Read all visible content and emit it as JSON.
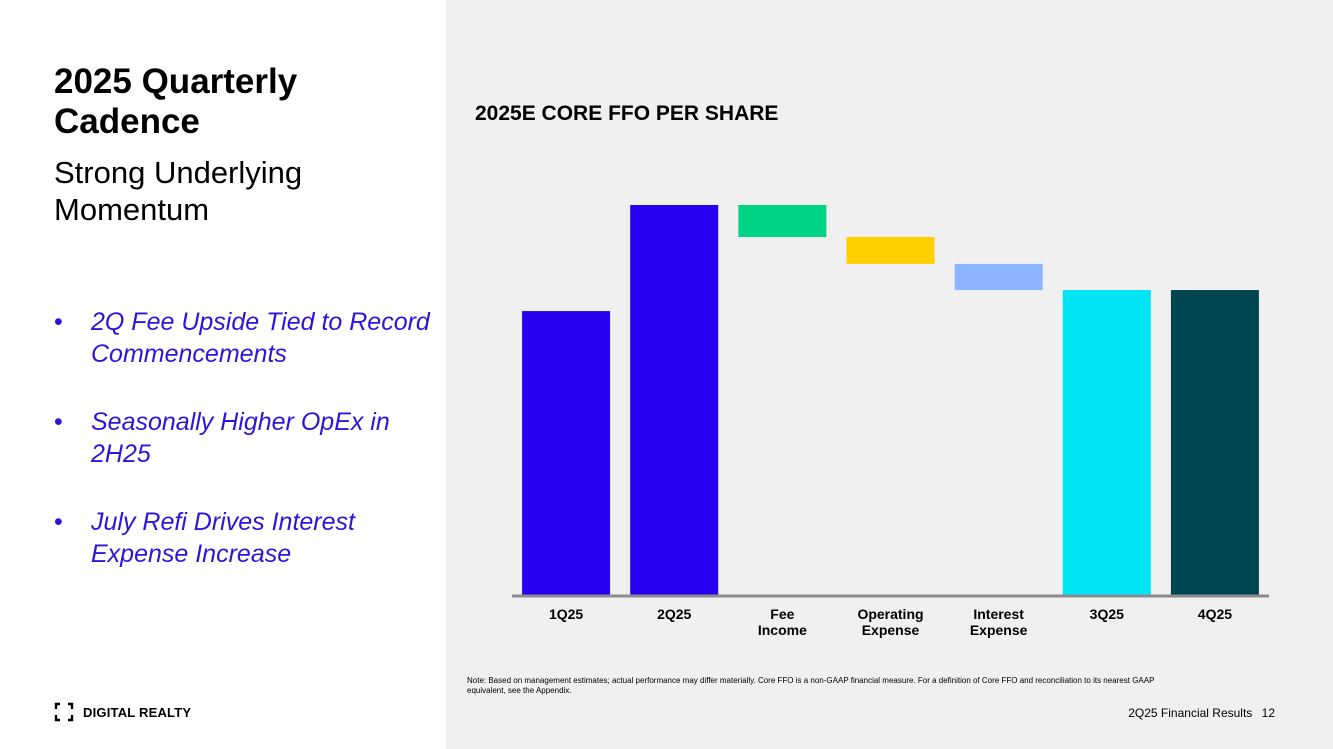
{
  "slide": {
    "title": "2025 Quarterly Cadence",
    "subtitle": "Strong Underlying Momentum",
    "bullets": [
      "2Q Fee Upside Tied to Record Commencements",
      "Seasonally Higher OpEx in 2H25",
      "July Refi Drives Interest Expense Increase"
    ],
    "bullet_symbol": "•",
    "logo_text": "DIGITAL REALTY",
    "note": "Note: Based on management estimates; actual performance may differ materially. Core FFO is a non-GAAP financial measure.  For a definition of Core FFO and reconciliation to its nearest GAAP equivalent, see the Appendix.",
    "footer_label": "2Q25 Financial Results",
    "page_number": "12"
  },
  "colors": {
    "accent_text": "#2f14d9",
    "panel_bg": "#f0f0f0"
  },
  "chart_data": {
    "type": "bar",
    "subtype": "waterfall",
    "title": "2025E CORE FFO PER SHARE",
    "xlabel": "",
    "ylabel": "",
    "ylim": [
      0,
      10
    ],
    "grid": false,
    "legend": "none",
    "categories": [
      "1Q25",
      "2Q25",
      "Fee Income",
      "Operating Expense",
      "Interest Expense",
      "3Q25",
      "4Q25"
    ],
    "category_lines": [
      [
        "1Q25"
      ],
      [
        "2Q25"
      ],
      [
        "Fee",
        "Income"
      ],
      [
        "Operating",
        "Expense"
      ],
      [
        "Interest",
        "Expense"
      ],
      [
        "3Q25"
      ],
      [
        "4Q25"
      ]
    ],
    "bars": [
      {
        "label": "1Q25",
        "start": 0,
        "end": 7.28,
        "color": "#2800f0"
      },
      {
        "label": "2Q25",
        "start": 0,
        "end": 10.0,
        "color": "#2800f0"
      },
      {
        "label": "Fee Income",
        "start": 10.0,
        "end": 9.18,
        "color": "#00d586"
      },
      {
        "label": "Operating Expense",
        "start": 9.18,
        "end": 8.49,
        "color": "#ffd000"
      },
      {
        "label": "Interest Expense",
        "start": 8.49,
        "end": 7.82,
        "color": "#8cb4ff"
      },
      {
        "label": "3Q25",
        "start": 0,
        "end": 7.82,
        "color": "#00e4f4"
      },
      {
        "label": "4Q25",
        "start": 0,
        "end": 7.82,
        "color": "#004651"
      }
    ]
  }
}
